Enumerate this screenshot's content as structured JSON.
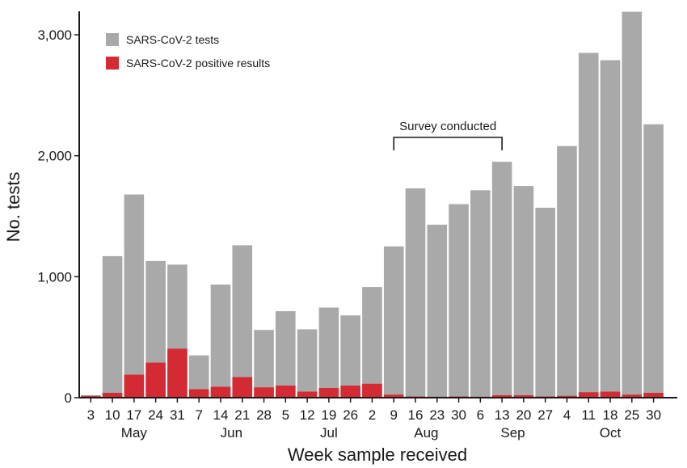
{
  "chart_data": {
    "type": "bar",
    "xlabel": "Week sample received",
    "ylabel": "No. tests",
    "ylim": [
      0,
      3200
    ],
    "yticks": [
      0,
      1000,
      2000,
      3000
    ],
    "ytick_labels": [
      "0",
      "1,000",
      "2,000",
      "3,000"
    ],
    "grid": false,
    "legend_position": "top-left",
    "categories": [
      "3",
      "10",
      "17",
      "24",
      "31",
      "7",
      "14",
      "21",
      "28",
      "5",
      "12",
      "19",
      "26",
      "2",
      "9",
      "16",
      "23",
      "30",
      "6",
      "13",
      "20",
      "27",
      "4",
      "11",
      "18",
      "25",
      "30"
    ],
    "months": [
      {
        "label": "May",
        "start": 0,
        "end": 4
      },
      {
        "label": "Jun",
        "start": 5,
        "end": 8
      },
      {
        "label": "Jul",
        "start": 9,
        "end": 13
      },
      {
        "label": "Aug",
        "start": 14,
        "end": 17
      },
      {
        "label": "Sep",
        "start": 18,
        "end": 21
      },
      {
        "label": "Oct",
        "start": 22,
        "end": 26
      }
    ],
    "series": [
      {
        "name": "SARS-CoV-2 tests",
        "color": "#a9a9a9",
        "values": [
          20,
          1170,
          1680,
          1130,
          1100,
          350,
          935,
          1260,
          560,
          715,
          565,
          745,
          680,
          915,
          1250,
          1730,
          1430,
          1600,
          1715,
          1950,
          1750,
          1570,
          2080,
          2850,
          2790,
          3190,
          2260
        ]
      },
      {
        "name": "SARS-CoV-2 positive results",
        "color": "#d42a34",
        "values": [
          15,
          40,
          190,
          290,
          405,
          70,
          90,
          170,
          85,
          100,
          50,
          80,
          100,
          115,
          25,
          10,
          8,
          10,
          8,
          20,
          20,
          10,
          15,
          45,
          50,
          25,
          40
        ]
      }
    ],
    "annotations": [
      {
        "text": "Survey conducted",
        "from_index": 14,
        "to_index": 19
      }
    ]
  }
}
